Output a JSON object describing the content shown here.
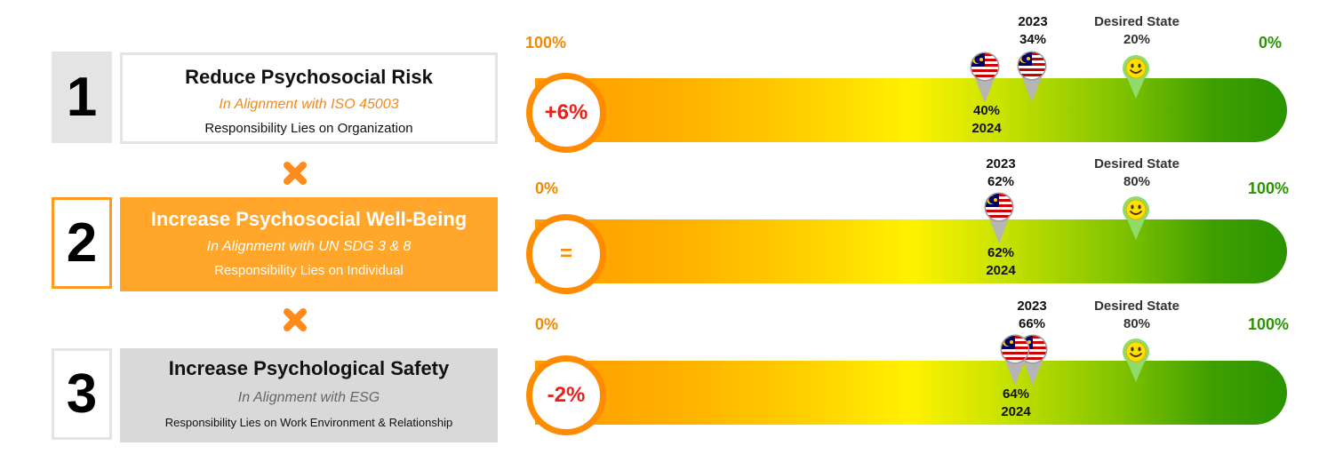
{
  "rows": [
    {
      "number": "1",
      "title": "Reduce Psychosocial Risk",
      "alignment": "In Alignment with ISO 45003",
      "responsibility": "Responsibility Lies on Organization",
      "scale_left": "100%",
      "scale_right": "0%",
      "change": "+6%",
      "year_2023_label": "2023",
      "value_2023": "34%",
      "value_2024": "40%",
      "year_2024_label": "2024",
      "desired_label": "Desired State",
      "desired_value": "20%"
    },
    {
      "number": "2",
      "title": "Increase Psychosocial Well-Being",
      "alignment": "In Alignment with UN SDG 3 & 8",
      "responsibility": "Responsibility Lies on Individual",
      "scale_left": "0%",
      "scale_right": "100%",
      "change": "=",
      "year_2023_label": "2023",
      "value_2023": "62%",
      "value_2024": "62%",
      "year_2024_label": "2024",
      "desired_label": "Desired State",
      "desired_value": "80%"
    },
    {
      "number": "3",
      "title": "Increase Psychological Safety",
      "alignment": "In Alignment with ESG",
      "responsibility": "Responsibility Lies on Work Environment & Relationship",
      "scale_left": "0%",
      "scale_right": "100%",
      "change": "-2%",
      "year_2023_label": "2023",
      "value_2023": "66%",
      "value_2024": "64%",
      "year_2024_label": "2024",
      "desired_label": "Desired State",
      "desired_value": "80%"
    }
  ],
  "colors": {
    "accent_orange": "#ff9a1f",
    "change_red": "#e8221b",
    "scale_orange": "#f08a00",
    "scale_green": "#2a9400"
  },
  "icons": [
    "cross-icon",
    "malaysia-flag-pin-icon",
    "smiley-pin-icon"
  ]
}
